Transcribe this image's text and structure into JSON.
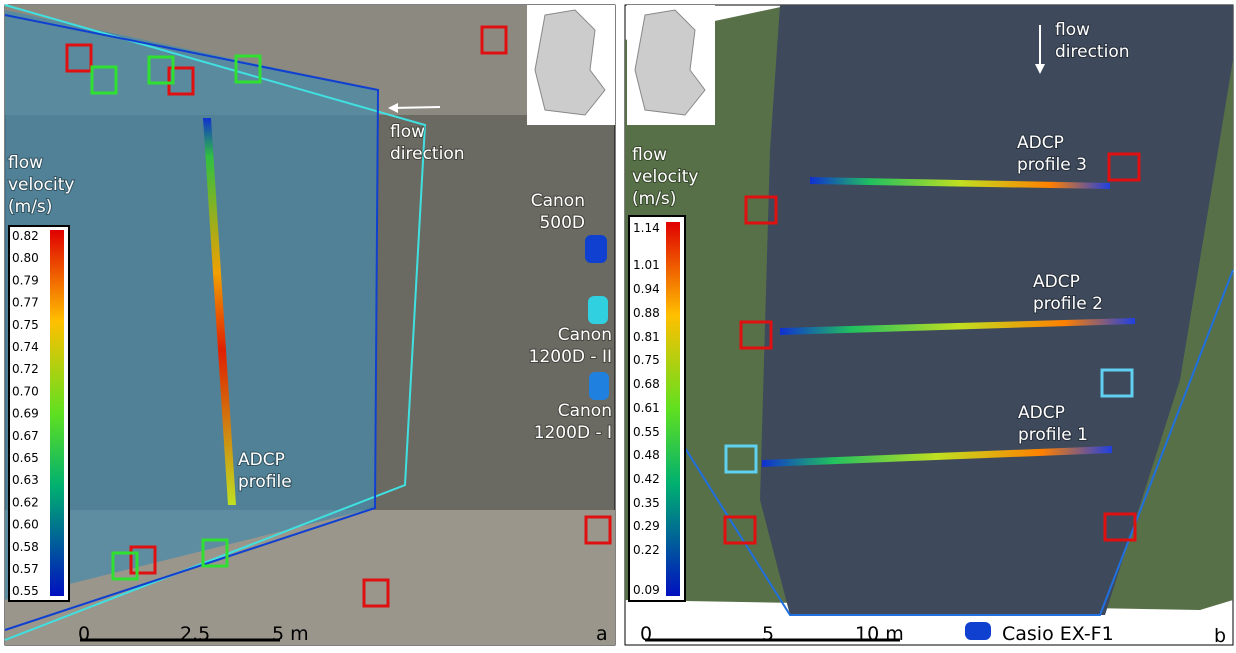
{
  "panel_a": {
    "flow_direction": [
      "flow",
      "direction"
    ],
    "flow_velocity": [
      "flow",
      "velocity",
      "(m/s)"
    ],
    "colorbar_ticks": [
      "0.82",
      "0.80",
      "0.79",
      "0.77",
      "0.75",
      "0.74",
      "0.72",
      "0.70",
      "0.69",
      "0.67",
      "0.65",
      "0.63",
      "0.62",
      "0.60",
      "0.58",
      "0.57",
      "0.55"
    ],
    "cameras": [
      [
        "Canon",
        "500D"
      ],
      [
        "Canon",
        "1200D - II"
      ],
      [
        "Canon",
        "1200D - I"
      ]
    ],
    "profile": [
      "ADCP",
      "profile"
    ],
    "scale": [
      "0",
      "2.5",
      "5 m"
    ],
    "letter": "a"
  },
  "panel_b": {
    "flow_direction": [
      "flow",
      "direction"
    ],
    "flow_velocity": [
      "flow",
      "velocity",
      "(m/s)"
    ],
    "colorbar_ticks": [
      "1.14",
      "1.01",
      "0.94",
      "0.88",
      "0.81",
      "0.75",
      "0.68",
      "0.61",
      "0.55",
      "0.48",
      "0.42",
      "0.35",
      "0.29",
      "0.22",
      "0.09"
    ],
    "profiles": [
      [
        "ADCP",
        "profile 3"
      ],
      [
        "ADCP",
        "profile 2"
      ],
      [
        "ADCP",
        "profile 1"
      ]
    ],
    "scale": [
      "0",
      "5",
      "10 m"
    ],
    "camera": "Casio EX-F1",
    "letter": "b"
  }
}
